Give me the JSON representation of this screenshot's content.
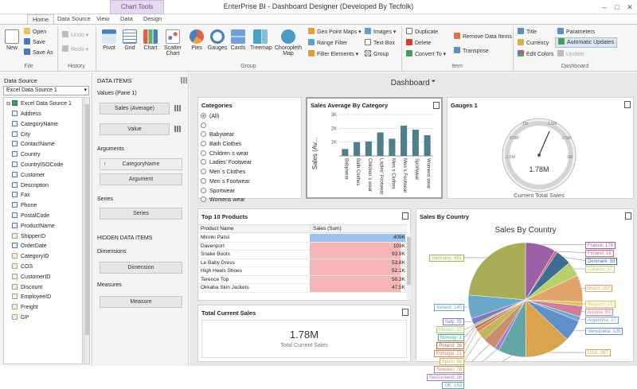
{
  "titlebar": {
    "title": "EnterPrise BI - Dashboard Designer (Developed By Tecfolk)",
    "context_tab": "Chart Tools",
    "min": "–",
    "max": "□",
    "close": "✕"
  },
  "tabs": [
    {
      "label": "Home"
    },
    {
      "label": "Data Source"
    },
    {
      "label": "View"
    },
    {
      "label": "Data"
    },
    {
      "label": "Design"
    }
  ],
  "app_button": "▤▽",
  "ribbon": {
    "file": {
      "group": "File",
      "new": "New",
      "open": "Open",
      "save": "Save",
      "save_as": "Save As"
    },
    "history": {
      "group": "History",
      "undo": "Undo",
      "redo": "Redo"
    },
    "insert": {
      "group": "Group",
      "pivot": "Pivot",
      "grid": "Grid",
      "chart": "Chart",
      "scatter": "Scatter Chart",
      "pies": "Pies",
      "gauges": "Gauges",
      "cards": "Cards",
      "treemap": "Treemap",
      "choropleth": "Choropleth Map",
      "geo_point": "Geo Point Maps",
      "range_filter": "Range Filter",
      "filter_elements": "Filter Elements",
      "images": "Images",
      "text_box": "Text Box"
    },
    "item": {
      "group": "Item",
      "duplicate": "Duplicate",
      "delete": "Delete",
      "convert_to": "Convert To",
      "remove_items": "Remove Data Items",
      "transpose": "Transpose"
    },
    "dashboard": {
      "group": "Dashboard",
      "title": "Title",
      "currency": "Currency",
      "edit_colors": "Edit Colors",
      "parameters": "Parameters",
      "auto_updates": "Automatic Updates",
      "update": "Update"
    }
  },
  "data_source": {
    "label": "Data Source",
    "selected": "Excel Data Source 1",
    "root": "Excel Data Source 1",
    "fields": [
      "Address",
      "CategoryName",
      "City",
      "ContactName",
      "Country",
      "CountryISOCode",
      "Customer",
      "Description",
      "Fax",
      "Phone",
      "PostalCode",
      "ProductName",
      "ShipperID",
      "OrderDate",
      "CategoryID",
      "COS",
      "CustomerID",
      "Discount",
      "EmployeeID",
      "Freight",
      "GP"
    ]
  },
  "data_items": {
    "header": "DATA ITEMS",
    "values_label": "Values (Pane 1)",
    "values": [
      "Sales (Average)",
      "Value"
    ],
    "arguments_label": "Arguments",
    "arguments": [
      "CategoryName",
      "Argument"
    ],
    "series_label": "Series",
    "series_box": "Series",
    "hidden_header": "HIDDEN DATA ITEMS",
    "dimensions_label": "Dimensions",
    "dimension_box": "Dimension",
    "measures_label": "Measures",
    "measure_box": "Measure"
  },
  "dashboard": {
    "title": "Dashboard",
    "categories": {
      "title": "Categories",
      "items": [
        "(All)",
        "",
        "Babywear",
        "Bath Clothes",
        "Children`s wear",
        "Ladies' Footwear",
        "Men`s Clothes",
        "Men`s Footwear",
        "Sportwear",
        "Womens wear"
      ]
    },
    "sales_avg": {
      "title": "Sales Average By Category",
      "ylabel": "Sales (Av..."
    },
    "gauges": {
      "title": "Gauges 1",
      "value": "1.78M",
      "caption": "Current Total Sales",
      "ticks": [
        "-1.5M",
        "0.5M",
        "1M",
        "1.5M",
        "2.5M",
        "3M"
      ]
    },
    "top10": {
      "title": "Top 10 Products",
      "columns": [
        "Product Name",
        "Sales (Sum)"
      ],
      "rows": [
        {
          "name": "Minnki Palsii",
          "sales": "409K",
          "frac": 1.0,
          "color": "#9cc3f0"
        },
        {
          "name": "Davenport",
          "sales": "103K",
          "frac": 0.95,
          "color": "#f7b5b5"
        },
        {
          "name": "Snake Boots",
          "sales": "93.9K",
          "frac": 0.95,
          "color": "#f7b5b5"
        },
        {
          "name": "Le Baby Dress",
          "sales": "53.8K",
          "frac": 0.95,
          "color": "#f7b5b5"
        },
        {
          "name": "High Heels Shoes",
          "sales": "52.1K",
          "frac": 0.95,
          "color": "#f7b5b5"
        },
        {
          "name": "Terence Top",
          "sales": "50.3K",
          "frac": 0.95,
          "color": "#f7b5b5"
        },
        {
          "name": "Okkaba Skin Jackets",
          "sales": "47.5K",
          "frac": 0.95,
          "color": "#f7b5b5"
        }
      ]
    },
    "total_sales": {
      "title": "Total Current Sales",
      "value": "1.78M",
      "caption": "Total Current Sales"
    },
    "by_country": {
      "title": "Sales By Country",
      "chart_title": "Sales By Country"
    }
  },
  "chart_data": [
    {
      "type": "bar",
      "categories": [
        "Babywear",
        "Bath Clothes",
        "Children`s wear",
        "Ladies' Footwear",
        "Men`s Clothes",
        "Men`s Footwear",
        "Sportwear",
        "Womens wear"
      ],
      "values": [
        500,
        1000,
        1050,
        1700,
        1250,
        2200,
        1900,
        1500
      ],
      "ylabel": "Sales (Av...",
      "yticks": [
        "1K",
        "2K",
        "3K"
      ],
      "ylim": [
        0,
        3000
      ],
      "color": "#4f7f8c"
    },
    {
      "type": "pie",
      "title": "Sales By Country",
      "slices": [
        {
          "label": "France: 178",
          "value": 178,
          "color": "#9b5fa5"
        },
        {
          "label": "Finland: 16",
          "value": 16,
          "color": "#c86a7e"
        },
        {
          "label": "Denmark: 93",
          "value": 93,
          "color": "#3d6e92"
        },
        {
          "label": "Canada: 87",
          "value": 87,
          "color": "#b8d06a"
        },
        {
          "label": "Brazil: 157",
          "value": 157,
          "color": "#e0a36a"
        },
        {
          "label": "Belgium: 25",
          "value": 25,
          "color": "#d8c85a"
        },
        {
          "label": "Austria: 63",
          "value": 63,
          "color": "#d07c9c"
        },
        {
          "label": "Argentina: 27",
          "value": 27,
          "color": "#74a5c9"
        },
        {
          "label": "Venezuela: 125",
          "value": 125,
          "color": "#5f8fc7"
        },
        {
          "label": "USA: 267",
          "value": 267,
          "color": "#d9a44d"
        },
        {
          "label": "UK: 163",
          "value": 163,
          "color": "#62a6a6"
        },
        {
          "label": "Switzerland: 26",
          "value": 26,
          "color": "#a37ed0"
        },
        {
          "label": "Sweden: 78",
          "value": 78,
          "color": "#c58e6c"
        },
        {
          "label": "Spain: 58",
          "value": 58,
          "color": "#c2b65b"
        },
        {
          "label": "Portugal: 21",
          "value": 21,
          "color": "#d87f5c"
        },
        {
          "label": "Poland: 16",
          "value": 16,
          "color": "#b4704a"
        },
        {
          "label": "Norway: 1",
          "value": 1,
          "color": "#5aa58a"
        },
        {
          "label": "Mexico: 13",
          "value": 13,
          "color": "#a3c87b"
        },
        {
          "label": "Italy: 35",
          "value": 35,
          "color": "#8276c2"
        },
        {
          "label": "Ireland: 140",
          "value": 140,
          "color": "#6aa8c9"
        },
        {
          "label": "Germany: 491",
          "value": 491,
          "color": "#a8ac55"
        }
      ]
    }
  ]
}
